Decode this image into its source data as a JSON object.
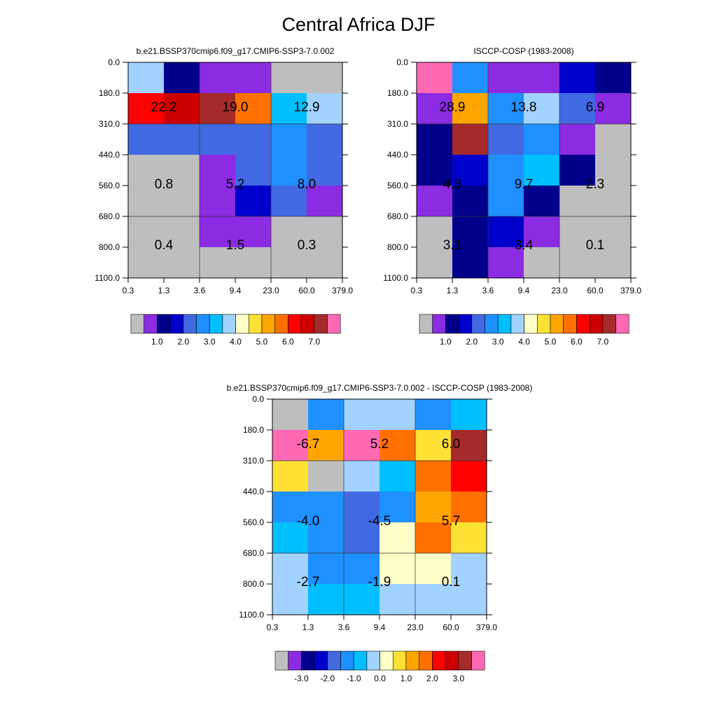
{
  "title": "Central Africa DJF",
  "y_ticks": [
    "0.0",
    "180.0",
    "310.0",
    "440.0",
    "560.0",
    "680.0",
    "800.0",
    "1100.0"
  ],
  "x_ticks": [
    "0.3",
    "1.3",
    "3.6",
    "9.4",
    "23.0",
    "60.0",
    "379.0"
  ],
  "colors": {
    "gray": "#bebebe",
    "violet": "#8b2be2",
    "navy": "#00008b",
    "blue": "#0000cd",
    "royal": "#4169e1",
    "dodger": "#1e90ff",
    "sky": "#00bfff",
    "pale": "#a2d2ff",
    "cream": "#ffffc8",
    "yellow": "#ffe135",
    "amber": "#ffa500",
    "orange": "#ff7000",
    "red": "#ff0000",
    "dkred": "#cc0000",
    "brown": "#a52a2a",
    "pink": "#ff69b4"
  },
  "colorbar_colors": [
    "gray",
    "violet",
    "navy",
    "blue",
    "royal",
    "dodger",
    "sky",
    "pale",
    "cream",
    "yellow",
    "amber",
    "orange",
    "red",
    "dkred",
    "brown",
    "pink"
  ],
  "chart_data": [
    {
      "type": "heatmap",
      "title": "b.e21.BSSP370cmip6.f09_g17.CMIP6-SSP3-7.0.002",
      "cells": [
        [
          "pale",
          "navy",
          "violet",
          "violet",
          "gray",
          "gray"
        ],
        [
          "red",
          "dkred",
          "brown",
          "orange",
          "sky",
          "pale"
        ],
        [
          "royal",
          "royal",
          "royal",
          "royal",
          "dodger",
          "royal"
        ],
        [
          "gray",
          "gray",
          "violet",
          "royal",
          "dodger",
          "royal"
        ],
        [
          "gray",
          "gray",
          "violet",
          "blue",
          "royal",
          "violet"
        ],
        [
          "gray",
          "gray",
          "violet",
          "violet",
          "gray",
          "gray"
        ],
        [
          "gray",
          "gray",
          "gray",
          "gray",
          "gray",
          "gray"
        ]
      ],
      "box_values": [
        [
          "22.2",
          "19.0",
          "12.9"
        ],
        [
          "0.8",
          "5.2",
          "8.0"
        ],
        [
          "0.4",
          "1.5",
          "0.3"
        ]
      ],
      "colorbar_labels": [
        "1.0",
        "2.0",
        "3.0",
        "4.0",
        "5.0",
        "6.0",
        "7.0"
      ]
    },
    {
      "type": "heatmap",
      "title": "ISCCP-COSP (1983-2008)",
      "cells": [
        [
          "pink",
          "dodger",
          "violet",
          "violet",
          "blue",
          "navy"
        ],
        [
          "violet",
          "amber",
          "dodger",
          "pale",
          "royal",
          "violet"
        ],
        [
          "navy",
          "brown",
          "royal",
          "dodger",
          "violet",
          "gray"
        ],
        [
          "navy",
          "blue",
          "dodger",
          "sky",
          "navy",
          "gray"
        ],
        [
          "violet",
          "navy",
          "dodger",
          "navy",
          "gray",
          "gray"
        ],
        [
          "gray",
          "navy",
          "blue",
          "violet",
          "gray",
          "gray"
        ],
        [
          "gray",
          "navy",
          "violet",
          "gray",
          "gray",
          "gray"
        ]
      ],
      "box_values": [
        [
          "28.9",
          "13.8",
          "6.9"
        ],
        [
          "4.8",
          "9.7",
          "2.3"
        ],
        [
          "3.1",
          "3.4",
          "0.1"
        ]
      ],
      "colorbar_labels": [
        "1.0",
        "2.0",
        "3.0",
        "4.0",
        "5.0",
        "6.0",
        "7.0"
      ]
    },
    {
      "type": "heatmap",
      "title": "b.e21.BSSP370cmip6.f09_g17.CMIP6-SSP3-7.0.002 - ISCCP-COSP (1983-2008)",
      "cells": [
        [
          "gray",
          "dodger",
          "pale",
          "pale",
          "dodger",
          "sky"
        ],
        [
          "pink",
          "amber",
          "pink",
          "orange",
          "yellow",
          "brown"
        ],
        [
          "yellow",
          "gray",
          "pale",
          "sky",
          "orange",
          "red"
        ],
        [
          "dodger",
          "dodger",
          "royal",
          "dodger",
          "amber",
          "orange"
        ],
        [
          "sky",
          "dodger",
          "royal",
          "cream",
          "orange",
          "yellow"
        ],
        [
          "pale",
          "dodger",
          "dodger",
          "cream",
          "cream",
          "pale"
        ],
        [
          "pale",
          "sky",
          "sky",
          "pale",
          "pale",
          "pale"
        ]
      ],
      "box_values": [
        [
          "-6.7",
          "5.2",
          "6.0"
        ],
        [
          "-4.0",
          "-4.5",
          "5.7"
        ],
        [
          "-2.7",
          "-1.9",
          "0.1"
        ]
      ],
      "colorbar_labels": [
        "-3.0",
        "-2.0",
        "-1.0",
        "0.0",
        "1.0",
        "2.0",
        "3.0"
      ]
    }
  ]
}
